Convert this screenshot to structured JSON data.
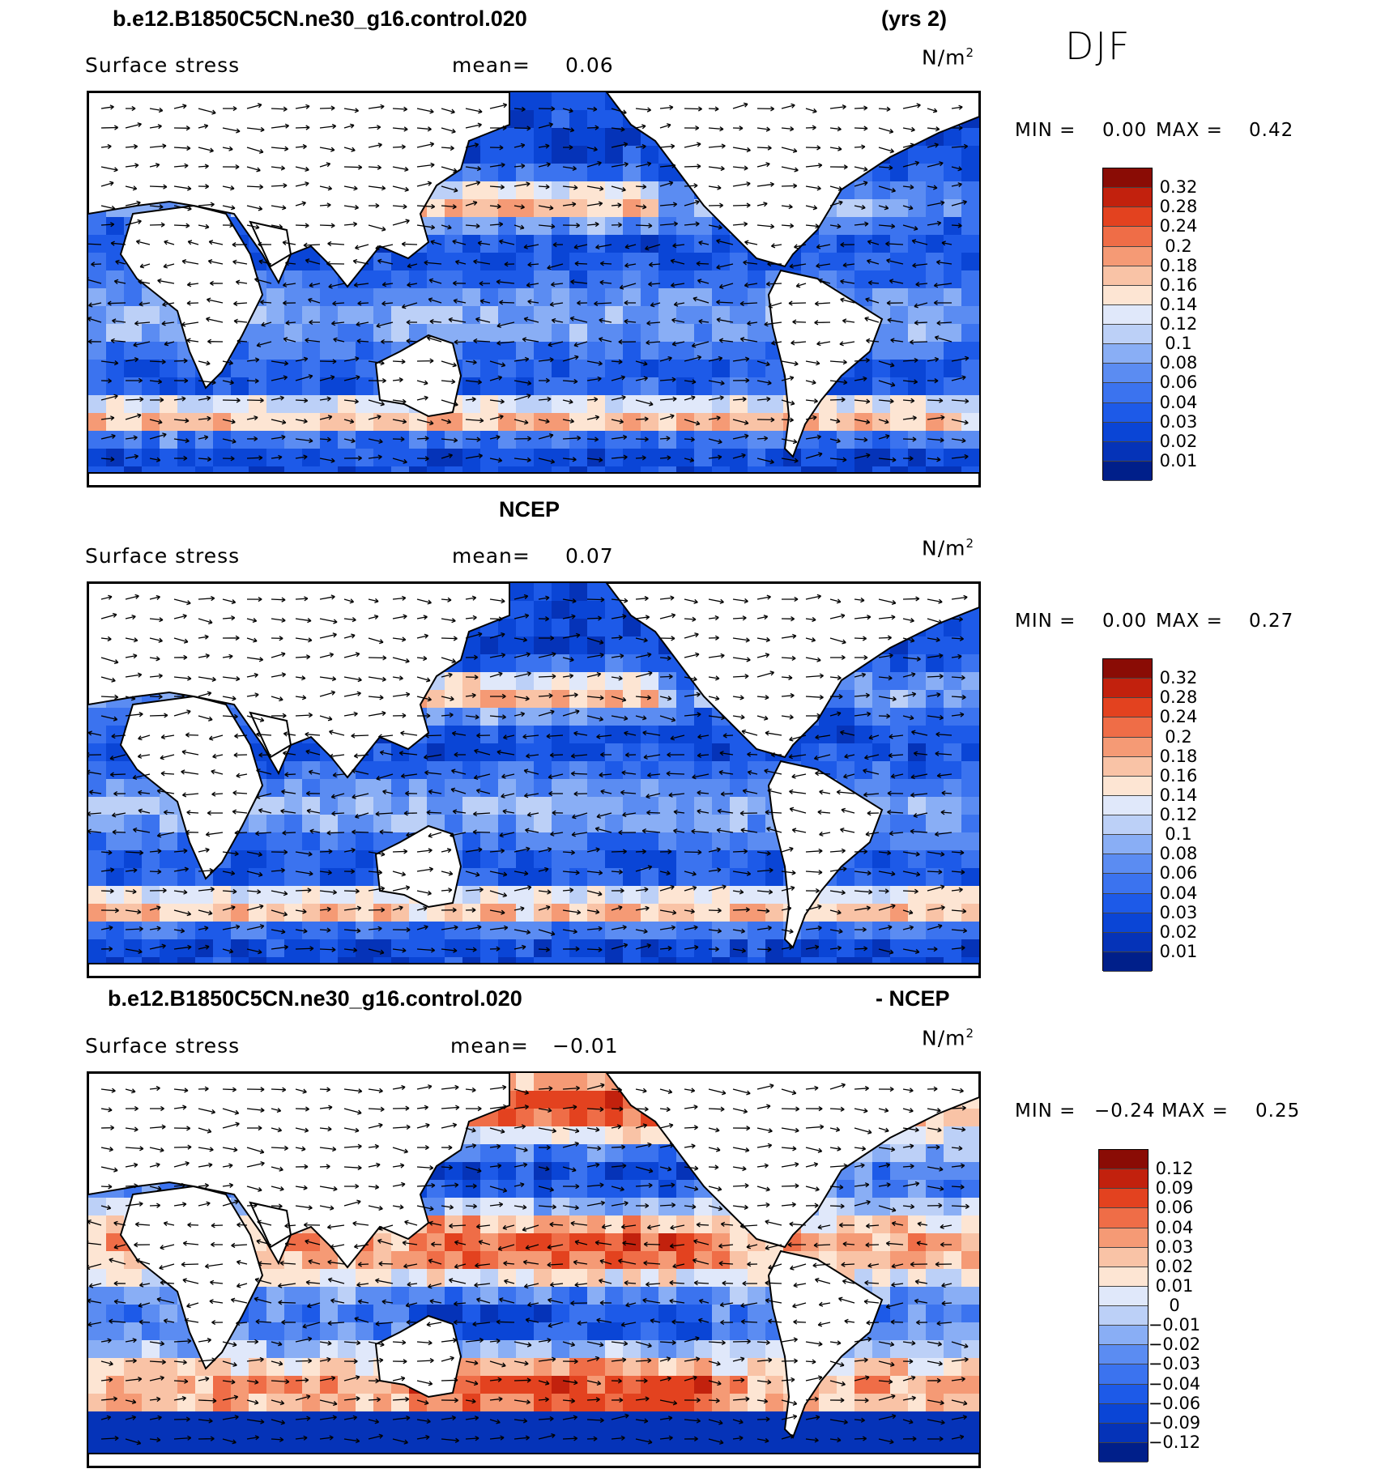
{
  "header": {
    "case_name": "b.e12.B1850C5CN.ne30_g16.control.020",
    "years": "(yrs 2)",
    "season": "DJF"
  },
  "panels": [
    {
      "id": "model",
      "title_left": "",
      "title_right": "",
      "variable": "Surface stress",
      "mean_label": "mean=",
      "mean_value": "0.06",
      "units": "N/m",
      "units_exp": "2",
      "min_label": "MIN =",
      "min_value": "0.00",
      "max_label": "MAX =",
      "max_value": "0.42",
      "colorbar_ticks": [
        "0.32",
        "0.28",
        "0.24",
        "0.2",
        "0.18",
        "0.16",
        "0.14",
        "0.12",
        "0.1",
        "0.08",
        "0.06",
        "0.04",
        "0.03",
        "0.02",
        "0.01"
      ]
    },
    {
      "id": "ncep",
      "title_left": "NCEP",
      "title_right": "",
      "variable": "Surface stress",
      "mean_label": "mean=",
      "mean_value": "0.07",
      "units": "N/m",
      "units_exp": "2",
      "min_label": "MIN =",
      "min_value": "0.00",
      "max_label": "MAX =",
      "max_value": "0.27",
      "colorbar_ticks": [
        "0.32",
        "0.28",
        "0.24",
        "0.2",
        "0.18",
        "0.16",
        "0.14",
        "0.12",
        "0.1",
        "0.08",
        "0.06",
        "0.04",
        "0.03",
        "0.02",
        "0.01"
      ]
    },
    {
      "id": "diff",
      "title_left": "b.e12.B1850C5CN.ne30_g16.control.020",
      "title_right": "- NCEP",
      "variable": "Surface stress",
      "mean_label": "mean=",
      "mean_value": "−0.01",
      "units": "N/m",
      "units_exp": "2",
      "min_label": "MIN =",
      "min_value": "−0.24",
      "max_label": "MAX =",
      "max_value": "0.25",
      "colorbar_ticks": [
        "0.12",
        "0.09",
        "0.06",
        "0.04",
        "0.03",
        "0.02",
        "0.01",
        "0",
        "−0.01",
        "−0.02",
        "−0.03",
        "−0.04",
        "−0.06",
        "−0.09",
        "−0.12"
      ]
    }
  ],
  "colors": {
    "scale": [
      "#001f8a",
      "#0533b8",
      "#0a45d6",
      "#1d5ae8",
      "#3b73ef",
      "#5b8cf2",
      "#89aef5",
      "#bcd0f7",
      "#e0e8fa",
      "#fde5d3",
      "#f9c3a6",
      "#f59a75",
      "#ef6d47",
      "#e3421f",
      "#c2210d",
      "#8a0c05"
    ],
    "land": "#ffffff",
    "coast": "#000000"
  },
  "chart_data": [
    {
      "type": "heatmap",
      "title": "Surface stress",
      "subtitle": "b.e12.B1850C5CN.ne30_g16.control.020 (yrs 2) DJF",
      "units": "N/m2",
      "mean": 0.06,
      "min": 0.0,
      "max": 0.42,
      "levels": [
        0.01,
        0.02,
        0.03,
        0.04,
        0.06,
        0.08,
        0.1,
        0.12,
        0.14,
        0.16,
        0.18,
        0.2,
        0.24,
        0.28,
        0.32
      ],
      "vector_overlay": true
    },
    {
      "type": "heatmap",
      "title": "Surface stress",
      "subtitle": "NCEP",
      "units": "N/m2",
      "mean": 0.07,
      "min": 0.0,
      "max": 0.27,
      "levels": [
        0.01,
        0.02,
        0.03,
        0.04,
        0.06,
        0.08,
        0.1,
        0.12,
        0.14,
        0.16,
        0.18,
        0.2,
        0.24,
        0.28,
        0.32
      ],
      "vector_overlay": true
    },
    {
      "type": "heatmap",
      "title": "Surface stress",
      "subtitle": "b.e12.B1850C5CN.ne30_g16.control.020 - NCEP",
      "units": "N/m2",
      "mean": -0.01,
      "min": -0.24,
      "max": 0.25,
      "levels": [
        -0.12,
        -0.09,
        -0.06,
        -0.04,
        -0.03,
        -0.02,
        -0.01,
        0,
        0.01,
        0.02,
        0.03,
        0.04,
        0.06,
        0.09,
        0.12
      ],
      "vector_overlay": true
    }
  ]
}
